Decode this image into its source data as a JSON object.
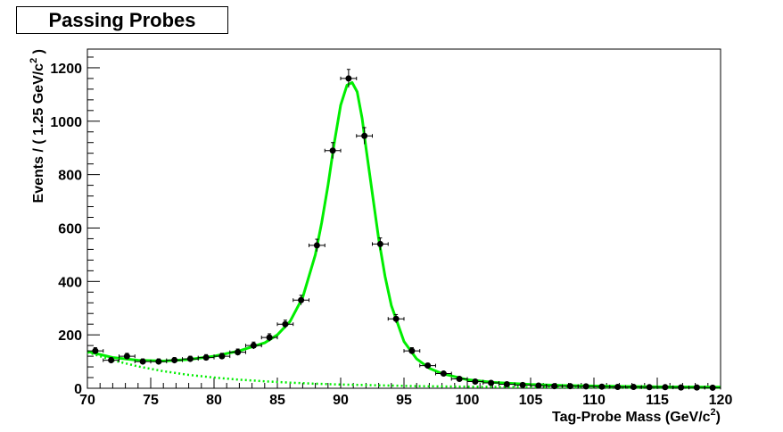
{
  "chart_data": {
    "type": "scatter",
    "title": "Passing Probes",
    "xlabel": "Tag-Probe Mass (GeV/c",
    "xlabel_sup": "2",
    "xlabel_close": ")",
    "ylabel": "Events / ( 1.25 GeV/c",
    "ylabel_sup": "2",
    "ylabel_close": " )",
    "xlim": [
      70,
      120
    ],
    "ylim": [
      0,
      1270
    ],
    "x_ticks": [
      70,
      75,
      80,
      85,
      90,
      95,
      100,
      105,
      110,
      115,
      120
    ],
    "y_ticks": [
      0,
      200,
      400,
      600,
      800,
      1000,
      1200
    ],
    "x_tick_labels": [
      "70",
      "75",
      "80",
      "85",
      "90",
      "95",
      "100",
      "105",
      "110",
      "115",
      "120"
    ],
    "y_tick_labels": [
      "0",
      "200",
      "400",
      "600",
      "800",
      "1000",
      "1200"
    ],
    "grid": false,
    "series": [
      {
        "kind": "data-points",
        "color": "#000000",
        "x_err": 0.625,
        "x": [
          70.625,
          71.875,
          73.125,
          74.375,
          75.625,
          76.875,
          78.125,
          79.375,
          80.625,
          81.875,
          83.125,
          84.375,
          85.625,
          86.875,
          88.125,
          89.375,
          90.625,
          91.875,
          93.125,
          94.375,
          95.625,
          96.875,
          98.125,
          99.375,
          100.625,
          101.875,
          103.125,
          104.375,
          105.625,
          106.875,
          108.125,
          109.375,
          110.625,
          111.875,
          113.125,
          114.375,
          115.625,
          116.875,
          118.125,
          119.375
        ],
        "y": [
          140,
          105,
          120,
          100,
          100,
          105,
          110,
          115,
          120,
          135,
          160,
          190,
          240,
          330,
          535,
          890,
          1160,
          945,
          540,
          260,
          140,
          85,
          55,
          35,
          25,
          20,
          15,
          12,
          10,
          8,
          8,
          7,
          6,
          5,
          5,
          4,
          4,
          3,
          3,
          2
        ],
        "y_err": [
          12,
          10,
          11,
          10,
          10,
          10,
          10,
          11,
          11,
          12,
          13,
          14,
          15,
          18,
          23,
          30,
          34,
          31,
          23,
          16,
          12,
          9,
          7,
          6,
          5,
          4,
          4,
          3,
          3,
          3,
          3,
          3,
          2,
          2,
          2,
          2,
          2,
          2,
          2,
          1
        ]
      },
      {
        "kind": "fit-total",
        "color": "#00ee00",
        "line": "solid",
        "x": [
          70,
          72,
          74,
          76,
          78,
          80,
          82,
          84,
          85,
          86,
          87,
          88,
          88.5,
          89,
          89.5,
          90,
          90.5,
          90.9,
          91.3,
          91.7,
          92,
          92.5,
          93,
          93.5,
          94,
          95,
          96,
          97,
          98,
          100,
          102,
          105,
          108,
          112,
          116,
          120
        ],
        "y": [
          138,
          115,
          105,
          102,
          108,
          120,
          140,
          170,
          200,
          250,
          340,
          500,
          620,
          760,
          920,
          1060,
          1135,
          1145,
          1110,
          1010,
          900,
          730,
          560,
          420,
          310,
          175,
          110,
          75,
          55,
          32,
          22,
          14,
          10,
          7,
          5,
          4
        ]
      },
      {
        "kind": "fit-background",
        "color": "#00ee00",
        "line": "dotted",
        "x": [
          70,
          72,
          74,
          76,
          78,
          80,
          82,
          84,
          86,
          88,
          90,
          93,
          96,
          100,
          105,
          110,
          115,
          120
        ],
        "y": [
          135,
          105,
          82,
          64,
          50,
          40,
          32,
          26,
          21,
          17,
          14,
          11,
          8,
          6,
          4,
          3,
          2,
          2
        ]
      }
    ]
  }
}
